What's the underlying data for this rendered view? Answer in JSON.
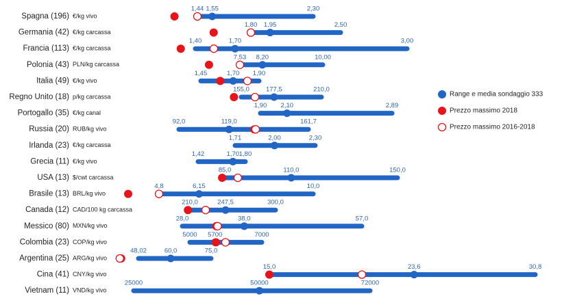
{
  "legend": {
    "range": "Range e media sondaggio 333",
    "max_2018": "Prezzo massimo  2018",
    "max_2016_2018": "Prezzo massimo 2016-2018"
  },
  "rows": [
    {
      "country": "Spagna (196)",
      "unit": "€/kg vivo",
      "min": {
        "value": 1.44,
        "label": "1,44"
      },
      "mean": {
        "value": 1.55,
        "label": "1,55"
      },
      "max": {
        "value": 2.3,
        "label": "2,30"
      },
      "max_2018": 1.27,
      "max_2016_2018": 1.44
    },
    {
      "country": "Germania (42)",
      "unit": "€/kg carcassa",
      "min": {
        "value": 1.8,
        "label": "1,80"
      },
      "mean": {
        "value": 1.95,
        "label": "1,95"
      },
      "max": {
        "value": 2.5,
        "label": "2,50"
      },
      "max_2018": 1.51,
      "max_2016_2018": 1.8
    },
    {
      "country": "Francia (113)",
      "unit": "€/kg carcassa",
      "min": {
        "value": 1.4,
        "label": "1,40"
      },
      "mean": {
        "value": 1.7,
        "label": "1,70"
      },
      "max": {
        "value": 3,
        "label": "3,00"
      },
      "max_2018": 1.29,
      "max_2016_2018": 1.54
    },
    {
      "country": "Polonia (43)",
      "unit": "PLN/kg carcassa",
      "min": {
        "value": 7.53,
        "label": "7,53"
      },
      "mean": {
        "value": 8.2,
        "label": "8,20"
      },
      "max": {
        "value": 10,
        "label": "10,00"
      },
      "max_2018": 6.61,
      "max_2016_2018": 7.53
    },
    {
      "country": "Italia (49)",
      "unit": "€/kg vivo",
      "min": {
        "value": 1.45,
        "label": "1,45"
      },
      "mean": {
        "value": 1.7,
        "label": "1,70"
      },
      "max": {
        "value": 1.9,
        "label": "1,90"
      },
      "max_2018": 1.6,
      "max_2016_2018": 1.81
    },
    {
      "country": "Regno Unito (18)",
      "unit": "p/kg carcassa",
      "min": {
        "value": 155,
        "label": "155,0"
      },
      "mean": {
        "value": 177.5,
        "label": "177,5"
      },
      "max": {
        "value": 210,
        "label": "210,0"
      },
      "max_2018": 150,
      "max_2016_2018": 164.4
    },
    {
      "country": "Portogallo (35)",
      "unit": "€/kg canal",
      "min": {
        "value": 1.9,
        "label": "1,90"
      },
      "mean": {
        "value": 2.1,
        "label": "2,10"
      },
      "max": {
        "value": 2.89,
        "label": "2,89"
      }
    },
    {
      "country": "Russia (20)",
      "unit": "RUB/kg vivo",
      "min": {
        "value": 92,
        "label": "92,0"
      },
      "mean": {
        "value": 119,
        "label": "119,0"
      },
      "max": {
        "value": 161.7,
        "label": "161,7"
      },
      "max_2018": 132.6,
      "max_2016_2018": 133.3
    },
    {
      "country": "Irlanda (23)",
      "unit": "€/kg carcassa",
      "min": {
        "value": 1.71,
        "label": "1,71"
      },
      "mean": {
        "value": 2,
        "label": "2,00"
      },
      "max": {
        "value": 2.3,
        "label": "2,30"
      }
    },
    {
      "country": "Grecia (11)",
      "unit": "€/kg vivo",
      "min": {
        "value": 1.42,
        "label": "1,42"
      },
      "mean": {
        "value": 1.7,
        "label": "1,70"
      },
      "max": {
        "value": 1.8,
        "label": "1,80"
      }
    },
    {
      "country": "USA (13)",
      "unit": "$/cwt carcassa",
      "min": {
        "value": 85,
        "label": "85,0"
      },
      "mean": {
        "value": 110,
        "label": "110,0"
      },
      "max": {
        "value": 150,
        "label": "150,0"
      },
      "max_2018": 84,
      "max_2016_2018": 89.9
    },
    {
      "country": "Brasile (13)",
      "unit": "BRL/kg vivo",
      "min": {
        "value": 4.8,
        "label": "4,8"
      },
      "mean": {
        "value": 6.15,
        "label": "6,15"
      },
      "max": {
        "value": 10,
        "label": "10,0"
      },
      "max_2018": 3.76,
      "max_2016_2018": 4.8
    },
    {
      "country": "Canada (12)",
      "unit": "CAD/100 kg carcassa",
      "min": {
        "value": 210,
        "label": "210,0"
      },
      "mean": {
        "value": 247.5,
        "label": "247,5"
      },
      "max": {
        "value": 300,
        "label": "300,0"
      },
      "max_2018": 208,
      "max_2016_2018": 226.6
    },
    {
      "country": "Messico (80)",
      "unit": "MXN/kg vivo",
      "min": {
        "value": 28,
        "label": "28,0"
      },
      "mean": {
        "value": 38,
        "label": "38,0"
      },
      "max": {
        "value": 57,
        "label": "57,0"
      },
      "max_2018": 33.5,
      "max_2016_2018": 33.7
    },
    {
      "country": "Colombia (23)",
      "unit": "COP/kg vivo",
      "min": {
        "value": 5000,
        "label": "5000"
      },
      "mean": {
        "value": 5700,
        "label": "5700"
      },
      "max": {
        "value": 7000,
        "label": "7000"
      },
      "max_2018": 5724,
      "max_2016_2018": 5990
    },
    {
      "country": "Argentina (25)",
      "unit": "ARG/kg vivo",
      "min": {
        "value": 48.02,
        "label": "48,02"
      },
      "mean": {
        "value": 60,
        "label": "60,0"
      },
      "max": {
        "value": 75,
        "label": "75,0"
      },
      "max_2018": 41.6,
      "max_2016_2018": 41.1
    },
    {
      "country": "Cina (41)",
      "unit": "CNY/kg vivo",
      "min": {
        "value": 15,
        "label": "15,0"
      },
      "mean": {
        "value": 23.6,
        "label": "23,6"
      },
      "max": {
        "value": 30.8,
        "label": "30,8"
      },
      "max_2018": 15,
      "max_2016_2018": 20.5
    },
    {
      "country": "Vietnam (11)",
      "unit": "VND/kg vivo",
      "min": {
        "value": 25000,
        "label": "25000"
      },
      "mean": {
        "value": 50000,
        "label": "50000"
      },
      "max": {
        "value": 72000,
        "label": "72000"
      }
    }
  ]
}
